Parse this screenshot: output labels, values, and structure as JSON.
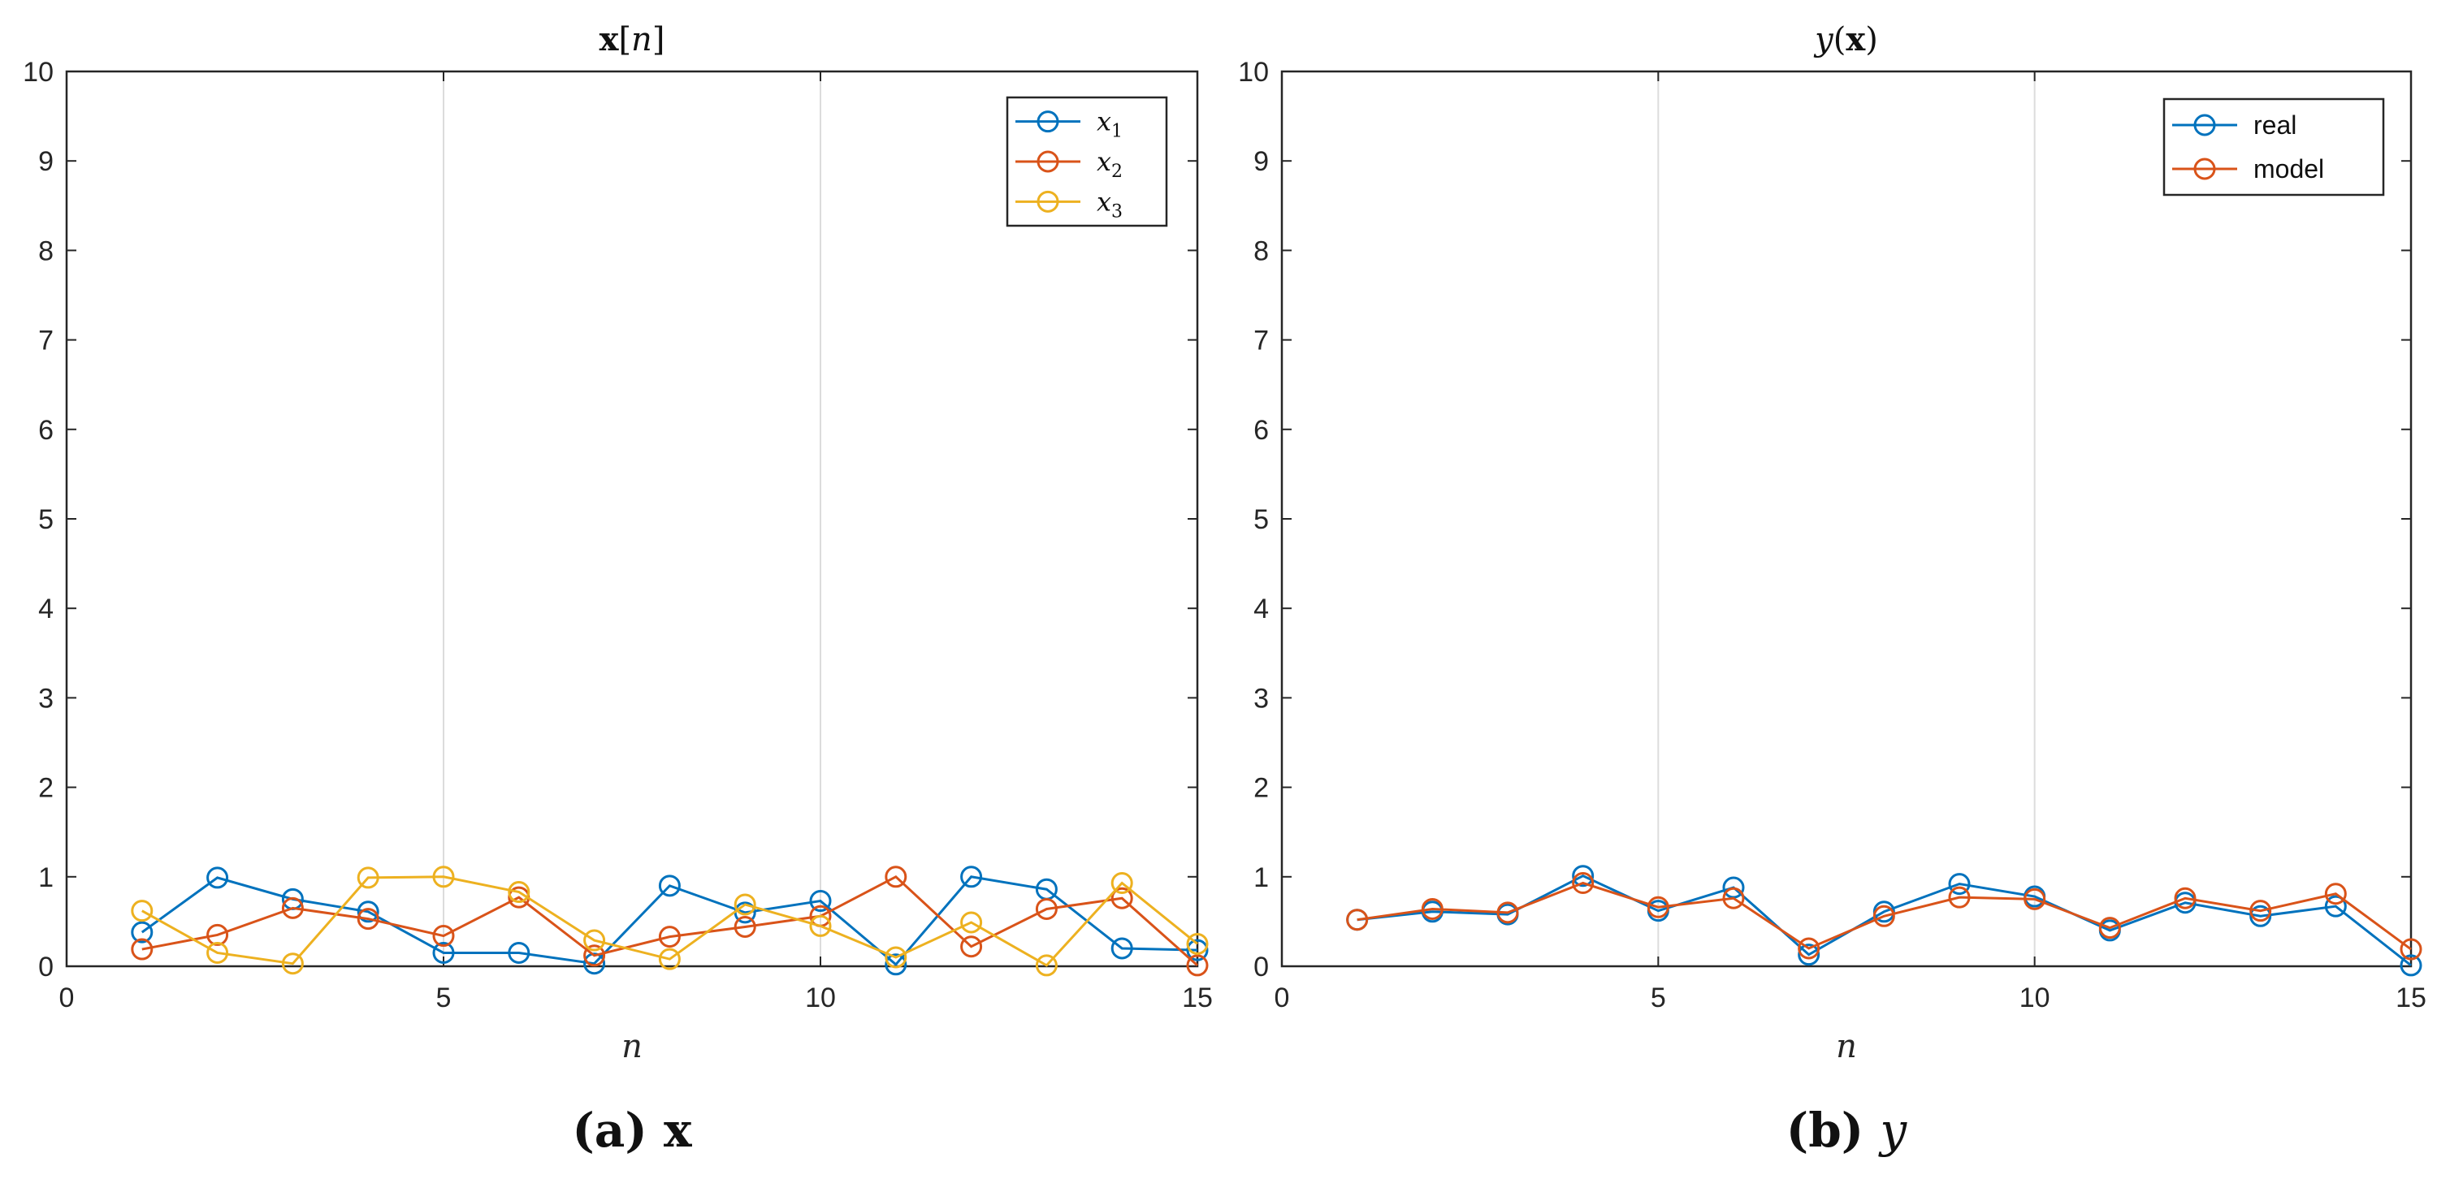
{
  "chart_data": [
    {
      "type": "line",
      "title": "x[n]",
      "title_parts": [
        "x",
        "[",
        "n",
        "]"
      ],
      "xlabel": "n",
      "ylabel": "",
      "xlim": [
        0,
        15
      ],
      "ylim": [
        0,
        10
      ],
      "xticks": [
        0,
        5,
        10,
        15
      ],
      "yticks": [
        0,
        1,
        2,
        3,
        4,
        5,
        6,
        7,
        8,
        9,
        10
      ],
      "grid": true,
      "legend_position": "top-right",
      "caption_label": "(a)",
      "caption_symbol": "x",
      "x": [
        1,
        2,
        3,
        4,
        5,
        6,
        7,
        8,
        9,
        10,
        11,
        12,
        13,
        14,
        15
      ],
      "series": [
        {
          "name": "x1",
          "label_main": "x",
          "label_sub": "1",
          "color": "#0072BD",
          "values": [
            0.38,
            0.99,
            0.75,
            0.61,
            0.15,
            0.15,
            0.03,
            0.9,
            0.6,
            0.73,
            0.02,
            1.0,
            0.86,
            0.2,
            0.18
          ]
        },
        {
          "name": "x2",
          "label_main": "x",
          "label_sub": "2",
          "color": "#D95319",
          "values": [
            0.19,
            0.35,
            0.65,
            0.53,
            0.34,
            0.77,
            0.12,
            0.33,
            0.44,
            0.56,
            1.0,
            0.22,
            0.64,
            0.76,
            0.01
          ]
        },
        {
          "name": "x3",
          "label_main": "x",
          "label_sub": "3",
          "color": "#EDB120",
          "values": [
            0.62,
            0.15,
            0.03,
            0.99,
            1.0,
            0.83,
            0.29,
            0.08,
            0.69,
            0.45,
            0.1,
            0.49,
            0.01,
            0.93,
            0.25
          ]
        }
      ]
    },
    {
      "type": "line",
      "title": "y(x)",
      "title_parts": [
        "y",
        "(",
        "x",
        ")"
      ],
      "xlabel": "n",
      "ylabel": "",
      "xlim": [
        0,
        15
      ],
      "ylim": [
        0,
        10
      ],
      "xticks": [
        0,
        5,
        10,
        15
      ],
      "yticks": [
        0,
        1,
        2,
        3,
        4,
        5,
        6,
        7,
        8,
        9,
        10
      ],
      "grid": true,
      "legend_position": "top-right",
      "caption_label": "(b)",
      "caption_symbol": "y",
      "x": [
        1,
        2,
        3,
        4,
        5,
        6,
        7,
        8,
        9,
        10,
        11,
        12,
        13,
        14,
        15
      ],
      "series": [
        {
          "name": "real",
          "label_main": "real",
          "label_sub": "",
          "color": "#0072BD",
          "values": [
            0.52,
            0.61,
            0.58,
            1.01,
            0.62,
            0.88,
            0.13,
            0.61,
            0.92,
            0.78,
            0.4,
            0.71,
            0.56,
            0.67,
            0.01
          ]
        },
        {
          "name": "model",
          "label_main": "model",
          "label_sub": "",
          "color": "#D95319",
          "values": [
            0.52,
            0.64,
            0.6,
            0.93,
            0.66,
            0.76,
            0.2,
            0.56,
            0.77,
            0.75,
            0.43,
            0.76,
            0.62,
            0.81,
            0.19
          ]
        }
      ]
    }
  ]
}
